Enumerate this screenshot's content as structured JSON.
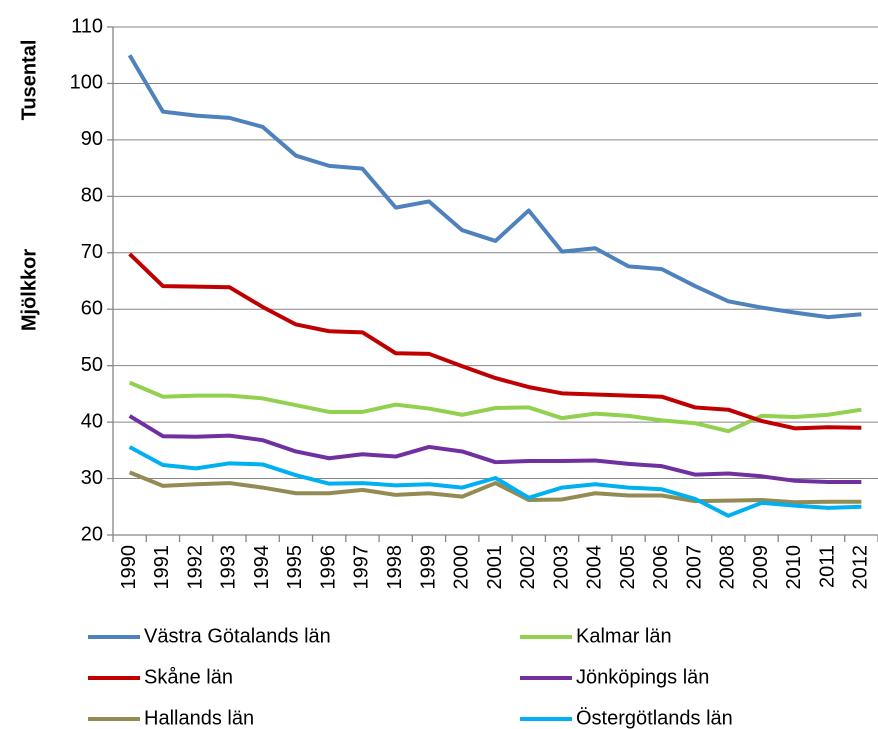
{
  "chart_data": {
    "type": "line",
    "y_axis_labels": [
      "Tusental",
      "Mjölkkor"
    ],
    "categories": [
      "1990",
      "1991",
      "1992",
      "1993",
      "1994",
      "1995",
      "1996",
      "1997",
      "1998",
      "1999",
      "2000",
      "2001",
      "2002",
      "2003",
      "2004",
      "2005",
      "2006",
      "2007",
      "2008",
      "2009",
      "2010",
      "2011",
      "2012"
    ],
    "series": [
      {
        "name": "Västra Götalands län",
        "color": "#4f81bd",
        "values": [
          105,
          95,
          94.3,
          93.9,
          92.3,
          87.2,
          85.4,
          84.9,
          78,
          79.1,
          74,
          72.1,
          77.5,
          70.2,
          70.8,
          67.6,
          67.1,
          64.1,
          61.4,
          60.3,
          59.4,
          58.6,
          59.1
        ]
      },
      {
        "name": "Kalmar län",
        "color": "#92d050",
        "values": [
          47,
          44.5,
          44.7,
          44.7,
          44.2,
          43,
          41.8,
          41.8,
          43.1,
          42.4,
          41.3,
          42.5,
          42.6,
          40.7,
          41.5,
          41.1,
          40.3,
          39.8,
          38.4,
          41.1,
          40.9,
          41.3,
          42.2
        ]
      },
      {
        "name": "Skåne län",
        "color": "#c00000",
        "values": [
          69.8,
          64.1,
          64,
          63.9,
          60.4,
          57.3,
          56.1,
          55.9,
          52.2,
          52.1,
          49.9,
          47.8,
          46.2,
          45.1,
          44.9,
          44.7,
          44.5,
          42.6,
          42.2,
          40.2,
          38.9,
          39.1,
          39
        ]
      },
      {
        "name": "Jönköpings län",
        "color": "#7030a0",
        "values": [
          41.1,
          37.5,
          37.4,
          37.6,
          36.8,
          34.8,
          33.6,
          34.3,
          33.9,
          35.6,
          34.8,
          32.9,
          33.1,
          33.1,
          33.2,
          32.6,
          32.2,
          30.7,
          30.9,
          30.4,
          29.6,
          29.4,
          29.4
        ]
      },
      {
        "name": "Hallands län",
        "color": "#948a54",
        "values": [
          31.1,
          28.7,
          29,
          29.2,
          28.4,
          27.4,
          27.4,
          28,
          27.1,
          27.4,
          26.8,
          29.2,
          26.2,
          26.3,
          27.4,
          27,
          27,
          26,
          26.1,
          26.2,
          25.8,
          25.9,
          25.9
        ]
      },
      {
        "name": "Östergötlands län",
        "color": "#00b0f0",
        "values": [
          35.6,
          32.4,
          31.8,
          32.7,
          32.5,
          30.6,
          29.1,
          29.2,
          28.8,
          29,
          28.4,
          30.1,
          26.6,
          28.4,
          29,
          28.4,
          28.1,
          26.4,
          23.4,
          25.7,
          25.2,
          24.8,
          25
        ]
      }
    ],
    "ylim": [
      20,
      110
    ],
    "yticks": [
      20,
      30,
      40,
      50,
      60,
      70,
      80,
      90,
      100,
      110
    ],
    "grid": true
  }
}
